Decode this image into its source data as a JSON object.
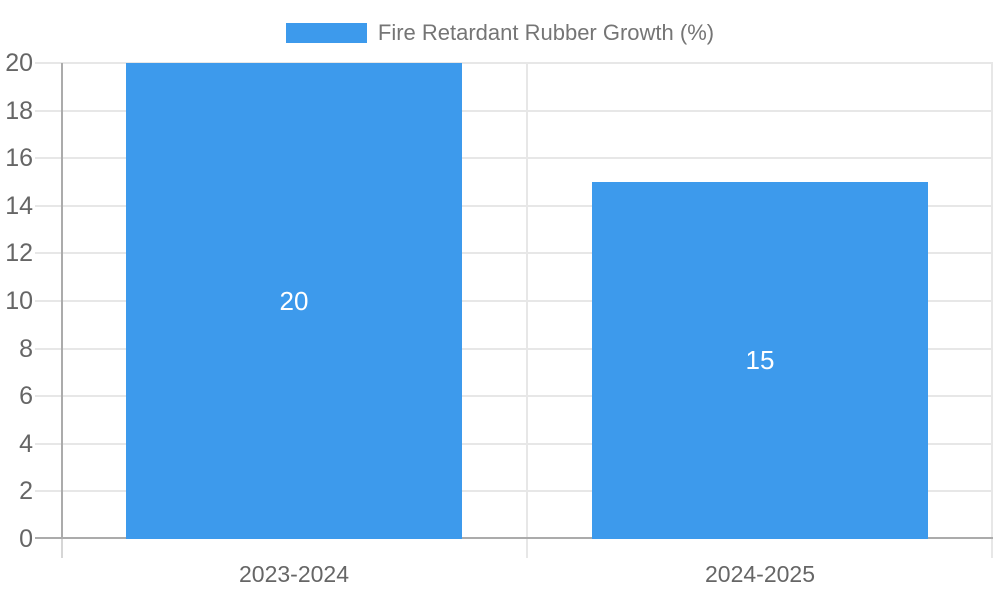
{
  "chart_data": {
    "type": "bar",
    "series_name": "Fire Retardant Rubber Growth (%)",
    "categories": [
      "2023-2024",
      "2024-2025"
    ],
    "values": [
      20,
      15
    ],
    "value_labels": [
      "20",
      "15"
    ],
    "ylim": [
      0,
      20
    ],
    "yticks": [
      0,
      2,
      4,
      6,
      8,
      10,
      12,
      14,
      16,
      18,
      20
    ],
    "grid": true,
    "legend_position": "top",
    "bar_color": "#3D9AEC",
    "value_label_color": "#ffffff"
  },
  "colors": {
    "background": "#ffffff",
    "grid": "#e7e7e7",
    "axis": "#ababab",
    "tick": "#d6d6d6",
    "tick_label": "#666666",
    "legend_text": "#757575"
  }
}
